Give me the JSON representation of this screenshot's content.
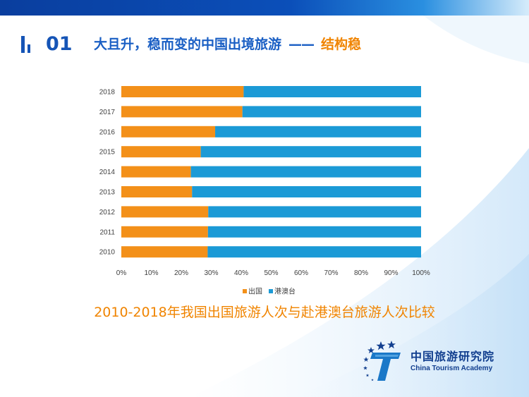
{
  "slide": {
    "number": "01",
    "title_main": "大且升，稳而变的中国出境旅游",
    "title_dash": "——",
    "title_accent": "结构稳"
  },
  "caption": "2010-2018年我国出国旅游人次与赴港澳台旅游人次比较",
  "logo": {
    "name_cn": "中国旅游研究院",
    "name_en": "China Tourism Academy"
  },
  "colors": {
    "band": "#0b4fb9",
    "accent": "#f08400",
    "series_outbound": "#f39019",
    "series_hmt": "#1b9ad6"
  },
  "chart_data": {
    "type": "bar",
    "orientation": "horizontal",
    "stacked": "percent",
    "categories": [
      "2018",
      "2017",
      "2016",
      "2015",
      "2014",
      "2013",
      "2012",
      "2011",
      "2010"
    ],
    "series": [
      {
        "name": "出国",
        "values": [
          40.8,
          40.4,
          31.3,
          26.5,
          23.2,
          23.6,
          29.0,
          28.9,
          28.8
        ]
      },
      {
        "name": "港澳台",
        "values": [
          59.2,
          59.6,
          68.7,
          73.5,
          76.8,
          76.4,
          71.0,
          71.1,
          71.2
        ]
      }
    ],
    "x_ticks": [
      "0%",
      "10%",
      "20%",
      "30%",
      "40%",
      "50%",
      "60%",
      "70%",
      "80%",
      "90%",
      "100%"
    ],
    "xlim": [
      0,
      100
    ],
    "grid": false,
    "legend_position": "bottom"
  }
}
